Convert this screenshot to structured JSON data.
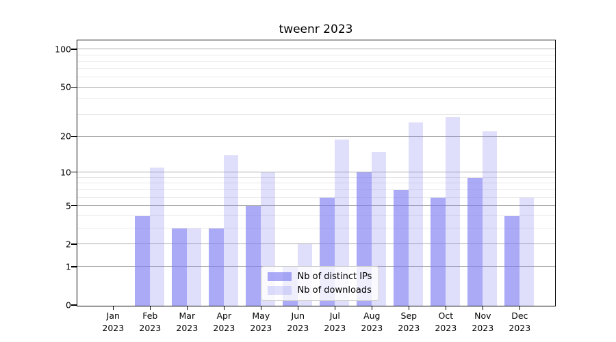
{
  "title": "tweenr 2023",
  "legend": {
    "items": [
      {
        "label": "Nb of distinct IPs"
      },
      {
        "label": "Nb of downloads"
      }
    ]
  },
  "chart_data": {
    "type": "bar",
    "title": "tweenr 2023",
    "categories": [
      "Jan",
      "Feb",
      "Mar",
      "Apr",
      "May",
      "Jun",
      "Jul",
      "Aug",
      "Sep",
      "Oct",
      "Nov",
      "Dec"
    ],
    "x_tick_year": "2023",
    "series": [
      {
        "name": "Nb of distinct IPs",
        "key": "distinct-ips",
        "values": [
          0,
          4,
          3,
          3,
          5,
          1,
          6,
          10,
          7,
          6,
          9,
          4
        ],
        "color": "rgba(120,120,240,0.63)"
      },
      {
        "name": "Nb of downloads",
        "key": "downloads",
        "values": [
          0,
          11,
          3,
          14,
          10,
          2,
          19,
          15,
          26,
          29,
          22,
          6
        ],
        "color": "rgba(120,120,240,0.24)"
      }
    ],
    "xlabel": "",
    "ylabel": "",
    "y_scale": "log1p",
    "ylim": [
      0,
      100
    ],
    "y_axis_ticks": [
      100,
      50,
      20,
      10,
      5,
      2,
      1,
      0
    ],
    "y_minor_gridlines": [
      3,
      4,
      6,
      7,
      8,
      9,
      30,
      40,
      60,
      70,
      80,
      90
    ],
    "grid": true,
    "legend_position": "lower center",
    "colors": {
      "major_grid": "#ababab",
      "minor_grid": "#e7e7e7",
      "axis": "#000000"
    }
  }
}
